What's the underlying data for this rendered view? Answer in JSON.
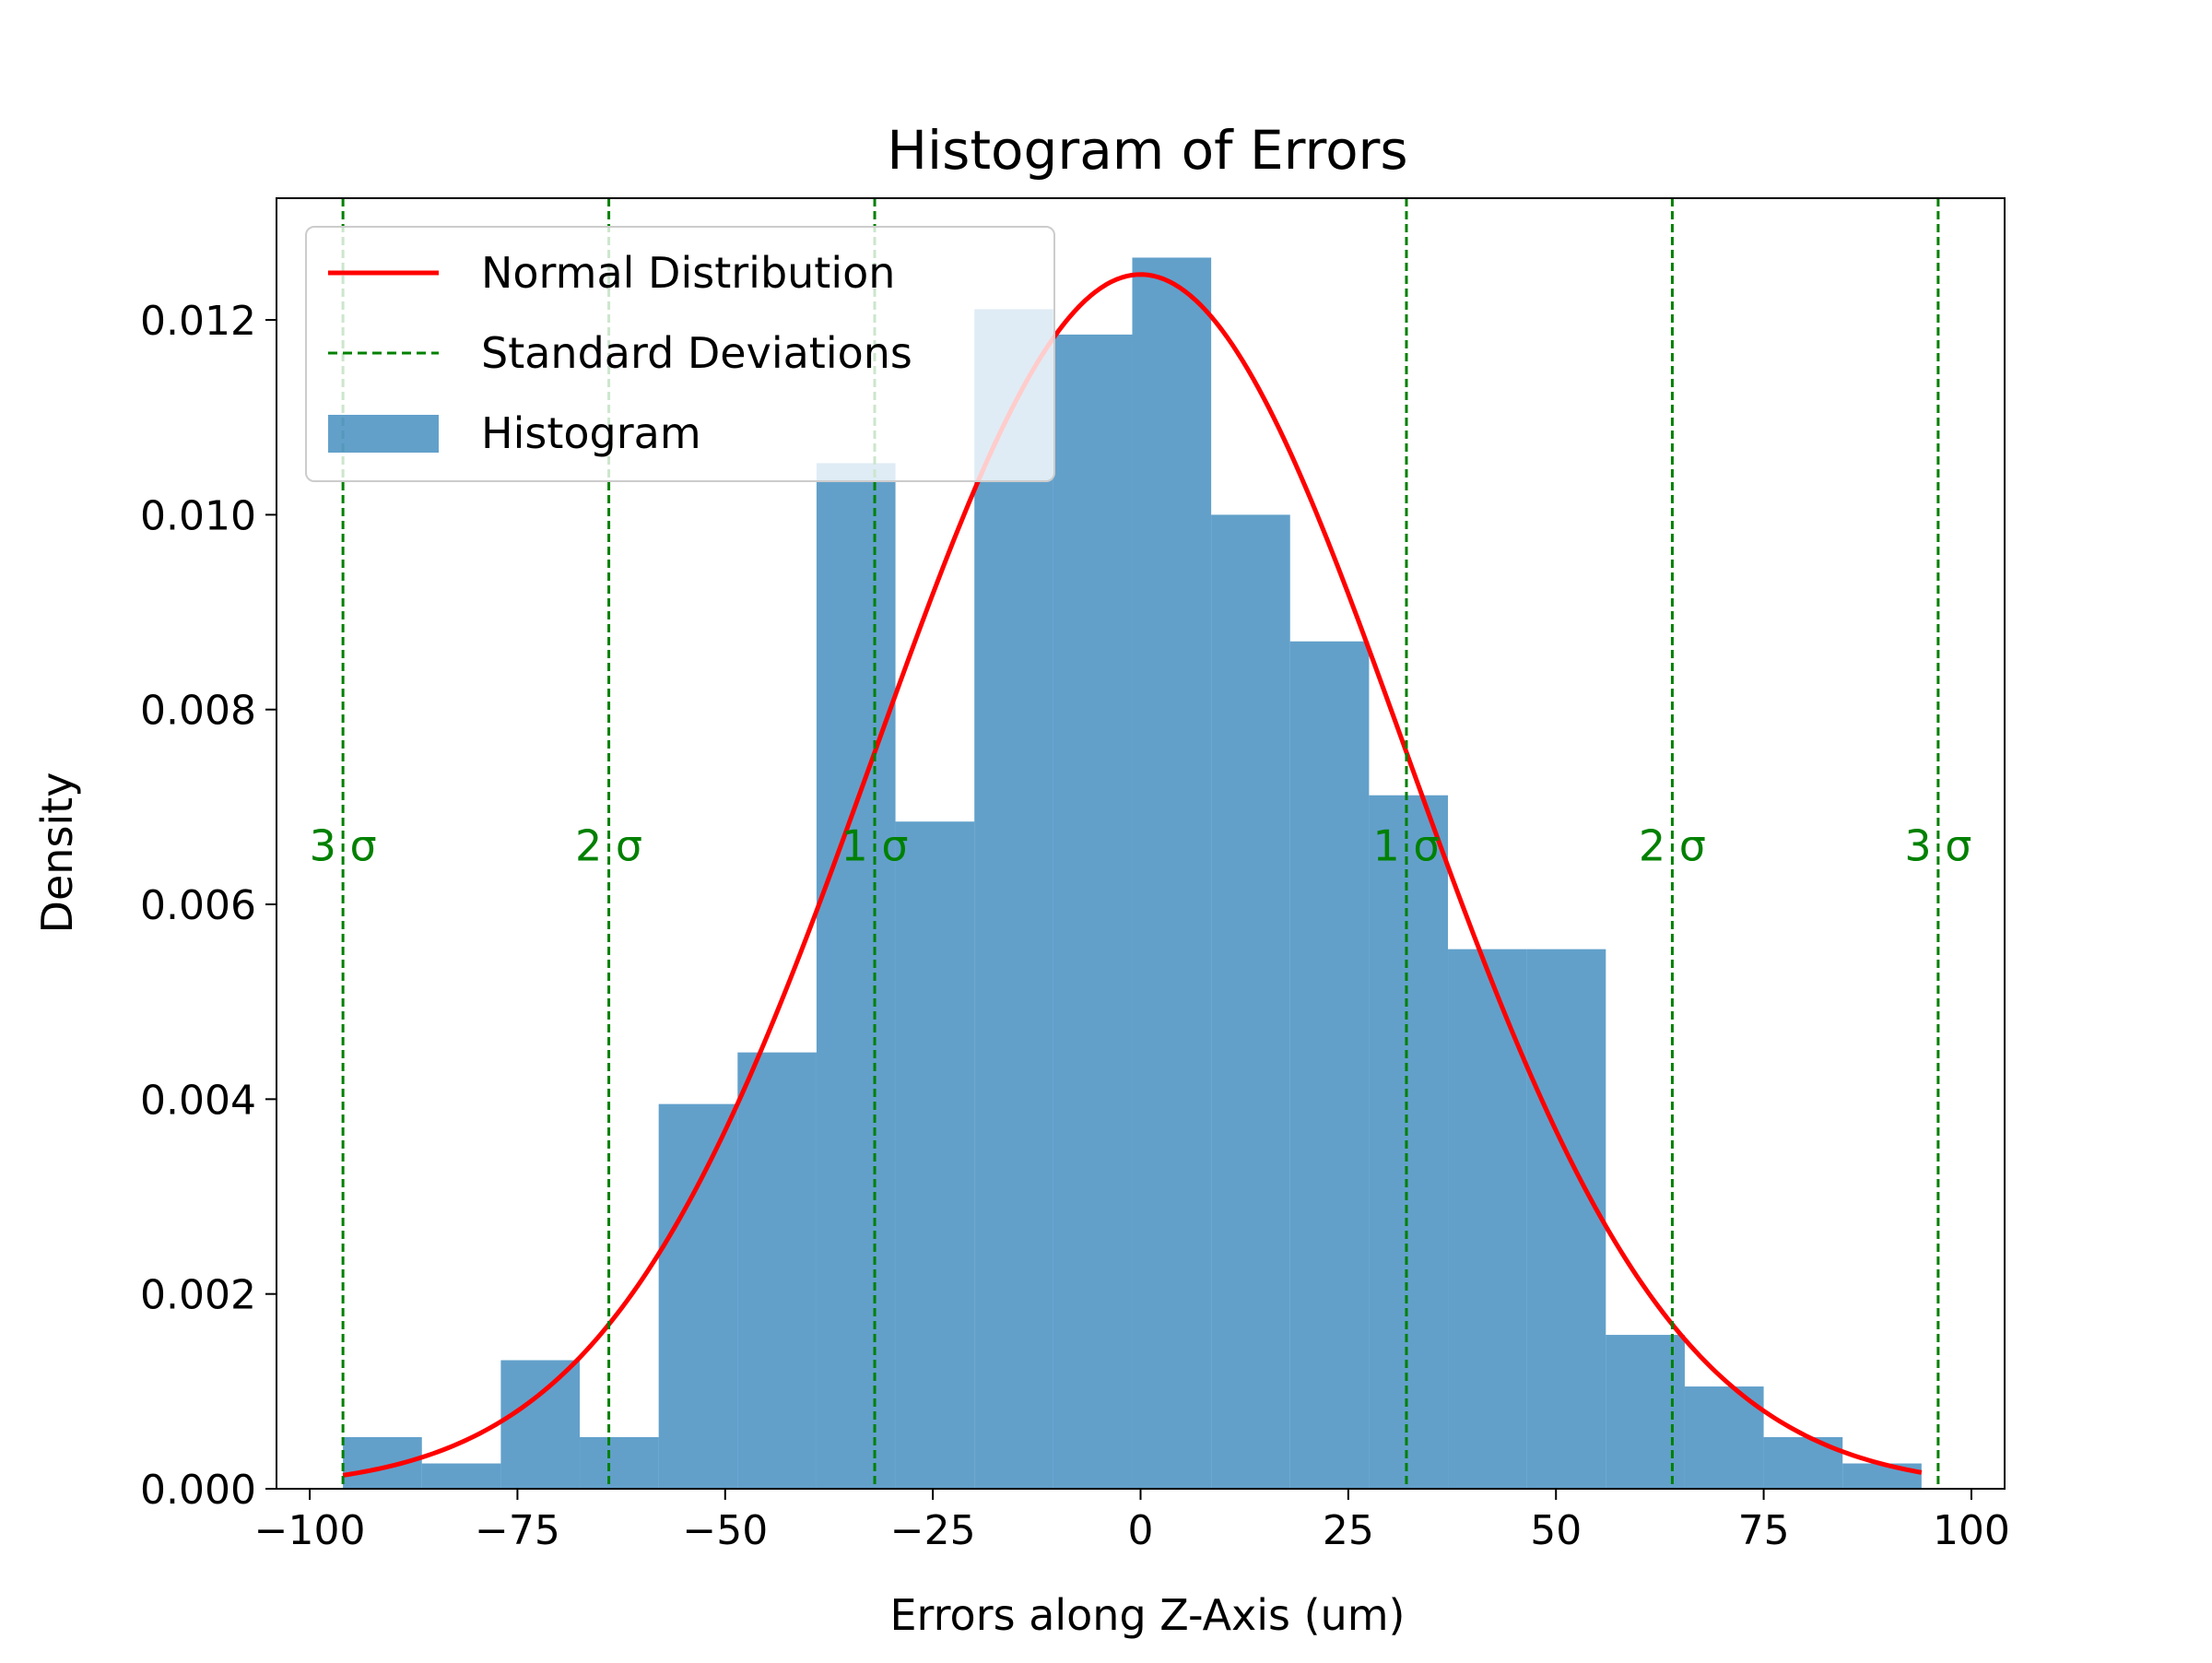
{
  "chart_data": {
    "type": "bar",
    "title": "Histogram of Errors",
    "xlabel": "Errors along Z-Axis (um)",
    "ylabel": "Density",
    "xlim": [
      -104,
      104
    ],
    "ylim": [
      0,
      0.01325
    ],
    "grid": false,
    "legend_placement": "upper-left",
    "x_ticks": [
      -100,
      -75,
      -50,
      -25,
      0,
      25,
      50,
      75,
      100
    ],
    "x_tick_labels": [
      "−100",
      "−75",
      "−50",
      "−25",
      "0",
      "25",
      "50",
      "75",
      "100"
    ],
    "y_ticks": [
      0,
      0.002,
      0.004,
      0.006,
      0.008,
      0.01,
      0.012
    ],
    "y_tick_labels": [
      "0.000",
      "0.002",
      "0.004",
      "0.006",
      "0.008",
      "0.010",
      "0.012"
    ],
    "histogram": {
      "name": "Histogram",
      "color": "#1f77b4",
      "bin_edges": [
        -96.0,
        -86.5,
        -77.0,
        -67.5,
        -58.0,
        -48.5,
        -39.0,
        -29.5,
        -20.0,
        -10.5,
        -1.0,
        8.5,
        18.0,
        27.5,
        37.0,
        46.5,
        56.0,
        65.5,
        75.0,
        84.5,
        94.0
      ],
      "densities": [
        0.00053,
        0.00026,
        0.00132,
        0.00053,
        0.00395,
        0.00448,
        0.01053,
        0.00685,
        0.01211,
        0.01185,
        0.01264,
        0.01,
        0.0087,
        0.00712,
        0.00554,
        0.00554,
        0.00158,
        0.00105,
        0.00053,
        0.00026
      ]
    },
    "normal_distribution": {
      "name": "Normal Distribution",
      "color": "#ff0000",
      "mean": 0.0,
      "std": 32.0,
      "x_range": [
        -96,
        94
      ]
    },
    "std_lines": {
      "name": "Standard Deviations",
      "color": "#008000",
      "positions": [
        -96,
        -64,
        -32,
        32,
        64,
        96
      ],
      "labels": [
        "3 σ",
        "2 σ",
        "1 σ",
        "1 σ",
        "2 σ",
        "3 σ"
      ],
      "label_y": 0.0066
    },
    "legend": [
      "Normal Distribution",
      "Standard Deviations",
      "Histogram"
    ]
  }
}
